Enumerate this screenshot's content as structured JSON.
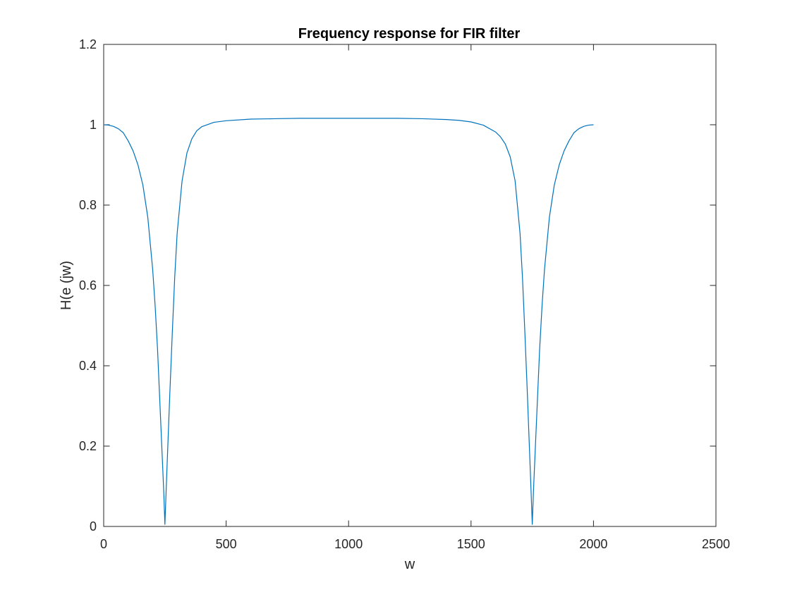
{
  "chart_data": {
    "type": "line",
    "title": "Frequency response for FIR filter",
    "xlabel": "w",
    "ylabel": "H(e (jw)",
    "xlim": [
      0,
      2500
    ],
    "ylim": [
      0,
      1.2
    ],
    "xticks": [
      0,
      500,
      1000,
      1500,
      2000,
      2500
    ],
    "xtick_labels": [
      "0",
      "500",
      "1000",
      "1500",
      "2000",
      "2500"
    ],
    "yticks": [
      0,
      0.2,
      0.4,
      0.6,
      0.8,
      1,
      1.2
    ],
    "ytick_labels": [
      "0",
      "0.2",
      "0.4",
      "0.6",
      "0.8",
      "1",
      "1.2"
    ],
    "grid": false,
    "box": true,
    "line_color": "#0072BD",
    "series": [
      {
        "x": [
          0,
          20,
          40,
          60,
          80,
          100,
          120,
          140,
          160,
          180,
          200,
          210,
          220,
          230,
          240,
          245,
          250,
          255,
          260,
          270,
          280,
          290,
          300,
          320,
          340,
          360,
          380,
          400,
          450,
          500,
          600,
          700,
          800,
          900,
          1000,
          1100,
          1200,
          1300,
          1400,
          1450,
          1500,
          1550,
          1600,
          1620,
          1640,
          1660,
          1680,
          1700,
          1710,
          1720,
          1730,
          1740,
          1745,
          1750,
          1755,
          1760,
          1770,
          1780,
          1790,
          1800,
          1820,
          1840,
          1860,
          1880,
          1900,
          1920,
          1940,
          1960,
          1980,
          2000
        ],
        "y": [
          1.0,
          0.999,
          0.996,
          0.99,
          0.98,
          0.96,
          0.935,
          0.9,
          0.85,
          0.77,
          0.64,
          0.55,
          0.44,
          0.3,
          0.16,
          0.09,
          0.005,
          0.09,
          0.17,
          0.33,
          0.48,
          0.62,
          0.73,
          0.86,
          0.93,
          0.965,
          0.985,
          0.995,
          1.006,
          1.01,
          1.014,
          1.015,
          1.016,
          1.016,
          1.016,
          1.016,
          1.016,
          1.015,
          1.013,
          1.011,
          1.007,
          0.999,
          0.982,
          0.97,
          0.952,
          0.92,
          0.86,
          0.73,
          0.62,
          0.48,
          0.33,
          0.17,
          0.09,
          0.005,
          0.09,
          0.16,
          0.3,
          0.44,
          0.55,
          0.64,
          0.77,
          0.85,
          0.9,
          0.935,
          0.96,
          0.98,
          0.99,
          0.996,
          0.999,
          1.0
        ]
      }
    ]
  }
}
